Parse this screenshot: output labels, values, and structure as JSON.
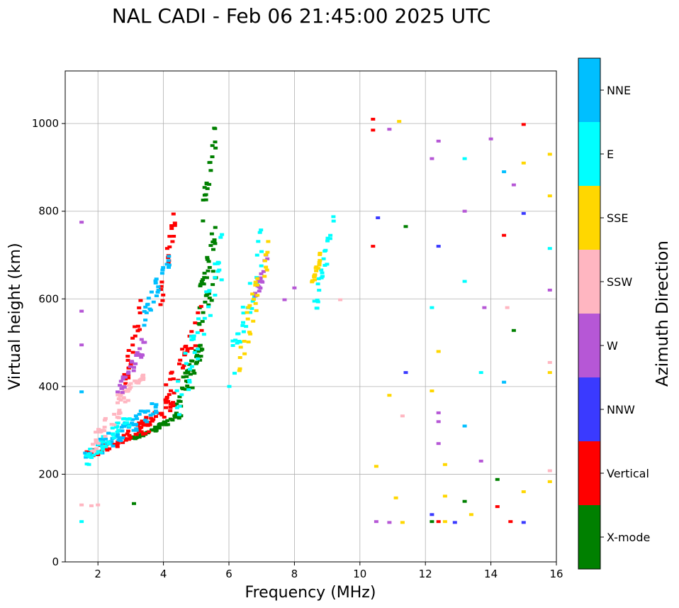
{
  "chart_data": {
    "type": "scatter",
    "title": "NAL CADI - Feb 06 21:45:00 2025 UTC",
    "xlabel": "Frequency (MHz)",
    "ylabel": "Virtual height (km)",
    "xlim": [
      1,
      16
    ],
    "ylim": [
      0,
      1120
    ],
    "xticks": [
      2,
      4,
      6,
      8,
      10,
      12,
      14,
      16
    ],
    "yticks": [
      0,
      200,
      400,
      600,
      800,
      1000
    ],
    "grid": true,
    "colorbar": {
      "label": "Azimuth Direction",
      "categories": [
        {
          "name": "X-mode",
          "color": "#008000"
        },
        {
          "name": "Vertical",
          "color": "#ff0000"
        },
        {
          "name": "NNW",
          "color": "#3a3aff"
        },
        {
          "name": "W",
          "color": "#b657d6"
        },
        {
          "name": "SSW",
          "color": "#ffb6c1"
        },
        {
          "name": "SSE",
          "color": "#ffd700"
        },
        {
          "name": "E",
          "color": "#00ffff"
        },
        {
          "name": "NNE",
          "color": "#00bfff"
        }
      ]
    },
    "clusters": [
      {
        "category": "X-mode",
        "f": [
          [
            3.0,
            3.7
          ],
          [
            3.7,
            4.6
          ],
          [
            4.3,
            5.2
          ],
          [
            4.8,
            5.6
          ],
          [
            5.2,
            5.6
          ],
          [
            5.1,
            5.6
          ]
        ],
        "h": [
          [
            280,
            300
          ],
          [
            300,
            340
          ],
          [
            340,
            500
          ],
          [
            380,
            700
          ],
          [
            800,
            980
          ],
          [
            600,
            760
          ]
        ]
      },
      {
        "category": "Vertical",
        "f": [
          [
            1.6,
            3.6
          ],
          [
            3.2,
            4.4
          ],
          [
            4.0,
            5.2
          ],
          [
            2.8,
            3.4
          ],
          [
            3.9,
            4.4
          ]
        ],
        "h": [
          [
            240,
            310
          ],
          [
            310,
            360
          ],
          [
            360,
            560
          ],
          [
            410,
            600
          ],
          [
            600,
            800
          ]
        ]
      },
      {
        "category": "NNE",
        "f": [
          [
            1.6,
            3.8
          ],
          [
            3.4,
            4.2
          ]
        ],
        "h": [
          [
            240,
            350
          ],
          [
            560,
            700
          ]
        ]
      },
      {
        "category": "E",
        "f": [
          [
            1.6,
            3.0
          ],
          [
            4.4,
            5.8
          ],
          [
            6.0,
            7.0
          ],
          [
            8.6,
            9.2
          ]
        ],
        "h": [
          [
            230,
            330
          ],
          [
            360,
            700
          ],
          [
            420,
            720
          ],
          [
            580,
            770
          ]
        ]
      },
      {
        "category": "SSW",
        "f": [
          [
            1.8,
            3.0
          ],
          [
            2.6,
            3.4
          ]
        ],
        "h": [
          [
            260,
            390
          ],
          [
            380,
            420
          ]
        ]
      },
      {
        "category": "W",
        "f": [
          [
            2.6,
            3.5
          ],
          [
            6.8,
            7.2
          ]
        ],
        "h": [
          [
            380,
            510
          ],
          [
            600,
            700
          ]
        ]
      },
      {
        "category": "SSE",
        "f": [
          [
            6.3,
            7.2
          ],
          [
            8.5,
            8.8
          ]
        ],
        "h": [
          [
            460,
            700
          ],
          [
            620,
            700
          ]
        ]
      }
    ],
    "scattered_points": [
      {
        "f": 10.4,
        "h": 1010,
        "category": "Vertical"
      },
      {
        "f": 10.4,
        "h": 985,
        "category": "Vertical"
      },
      {
        "f": 10.4,
        "h": 720,
        "category": "Vertical"
      },
      {
        "f": 10.55,
        "h": 785,
        "category": "NNW"
      },
      {
        "f": 11.4,
        "h": 765,
        "category": "X-mode"
      },
      {
        "f": 11.4,
        "h": 432,
        "category": "NNW"
      },
      {
        "f": 11.2,
        "h": 1005,
        "category": "SSE"
      },
      {
        "f": 10.9,
        "h": 987,
        "category": "W"
      },
      {
        "f": 12.2,
        "h": 920,
        "category": "W"
      },
      {
        "f": 12.4,
        "h": 960,
        "category": "W"
      },
      {
        "f": 12.4,
        "h": 720,
        "category": "NNW"
      },
      {
        "f": 13.2,
        "h": 920,
        "category": "E"
      },
      {
        "f": 13.2,
        "h": 800,
        "category": "W"
      },
      {
        "f": 13.2,
        "h": 640,
        "category": "E"
      },
      {
        "f": 13.8,
        "h": 580,
        "category": "W"
      },
      {
        "f": 14.0,
        "h": 965,
        "category": "W"
      },
      {
        "f": 14.4,
        "h": 890,
        "category": "NNE"
      },
      {
        "f": 14.4,
        "h": 745,
        "category": "Vertical"
      },
      {
        "f": 14.7,
        "h": 860,
        "category": "W"
      },
      {
        "f": 15.0,
        "h": 998,
        "category": "Vertical"
      },
      {
        "f": 15.0,
        "h": 910,
        "category": "SSE"
      },
      {
        "f": 15.0,
        "h": 795,
        "category": "NNW"
      },
      {
        "f": 15.8,
        "h": 930,
        "category": "SSE"
      },
      {
        "f": 15.8,
        "h": 835,
        "category": "SSE"
      },
      {
        "f": 15.8,
        "h": 715,
        "category": "E"
      },
      {
        "f": 15.8,
        "h": 620,
        "category": "W"
      },
      {
        "f": 15.8,
        "h": 455,
        "category": "SSW"
      },
      {
        "f": 15.8,
        "h": 432,
        "category": "SSE"
      },
      {
        "f": 15.8,
        "h": 208,
        "category": "SSW"
      },
      {
        "f": 15.8,
        "h": 183,
        "category": "SSE"
      },
      {
        "f": 14.5,
        "h": 580,
        "category": "SSW"
      },
      {
        "f": 14.7,
        "h": 528,
        "category": "X-mode"
      },
      {
        "f": 14.4,
        "h": 410,
        "category": "NNE"
      },
      {
        "f": 13.7,
        "h": 432,
        "category": "E"
      },
      {
        "f": 13.2,
        "h": 310,
        "category": "NNE"
      },
      {
        "f": 12.4,
        "h": 340,
        "category": "W"
      },
      {
        "f": 12.4,
        "h": 320,
        "category": "W"
      },
      {
        "f": 12.4,
        "h": 270,
        "category": "W"
      },
      {
        "f": 12.4,
        "h": 480,
        "category": "SSE"
      },
      {
        "f": 12.2,
        "h": 580,
        "category": "E"
      },
      {
        "f": 12.2,
        "h": 390,
        "category": "SSE"
      },
      {
        "f": 12.6,
        "h": 222,
        "category": "SSE"
      },
      {
        "f": 13.7,
        "h": 230,
        "category": "W"
      },
      {
        "f": 14.2,
        "h": 188,
        "category": "X-mode"
      },
      {
        "f": 14.2,
        "h": 126,
        "category": "Vertical"
      },
      {
        "f": 15.0,
        "h": 160,
        "category": "SSE"
      },
      {
        "f": 12.6,
        "h": 150,
        "category": "SSE"
      },
      {
        "f": 13.2,
        "h": 138,
        "category": "X-mode"
      },
      {
        "f": 13.4,
        "h": 108,
        "category": "SSE"
      },
      {
        "f": 12.2,
        "h": 108,
        "category": "NNW"
      },
      {
        "f": 12.2,
        "h": 92,
        "category": "X-mode"
      },
      {
        "f": 12.4,
        "h": 92,
        "category": "Vertical"
      },
      {
        "f": 12.6,
        "h": 92,
        "category": "SSE"
      },
      {
        "f": 12.9,
        "h": 90,
        "category": "NNW"
      },
      {
        "f": 14.6,
        "h": 92,
        "category": "Vertical"
      },
      {
        "f": 15.0,
        "h": 90,
        "category": "NNW"
      },
      {
        "f": 10.5,
        "h": 92,
        "category": "W"
      },
      {
        "f": 10.9,
        "h": 90,
        "category": "W"
      },
      {
        "f": 11.3,
        "h": 90,
        "category": "SSE"
      },
      {
        "f": 11.1,
        "h": 146,
        "category": "SSE"
      },
      {
        "f": 10.5,
        "h": 218,
        "category": "SSE"
      },
      {
        "f": 11.3,
        "h": 333,
        "category": "SSW"
      },
      {
        "f": 10.9,
        "h": 380,
        "category": "SSE"
      },
      {
        "f": 9.4,
        "h": 598,
        "category": "SSW"
      },
      {
        "f": 1.5,
        "h": 775,
        "category": "W"
      },
      {
        "f": 1.5,
        "h": 572,
        "category": "W"
      },
      {
        "f": 1.5,
        "h": 495,
        "category": "W"
      },
      {
        "f": 1.5,
        "h": 388,
        "category": "NNE"
      },
      {
        "f": 1.5,
        "h": 130,
        "category": "SSW"
      },
      {
        "f": 1.5,
        "h": 92,
        "category": "E"
      },
      {
        "f": 1.8,
        "h": 128,
        "category": "SSW"
      },
      {
        "f": 2.0,
        "h": 130,
        "category": "SSW"
      },
      {
        "f": 3.1,
        "h": 133,
        "category": "X-mode"
      },
      {
        "f": 8.0,
        "h": 625,
        "category": "W"
      },
      {
        "f": 7.7,
        "h": 598,
        "category": "W"
      }
    ]
  }
}
